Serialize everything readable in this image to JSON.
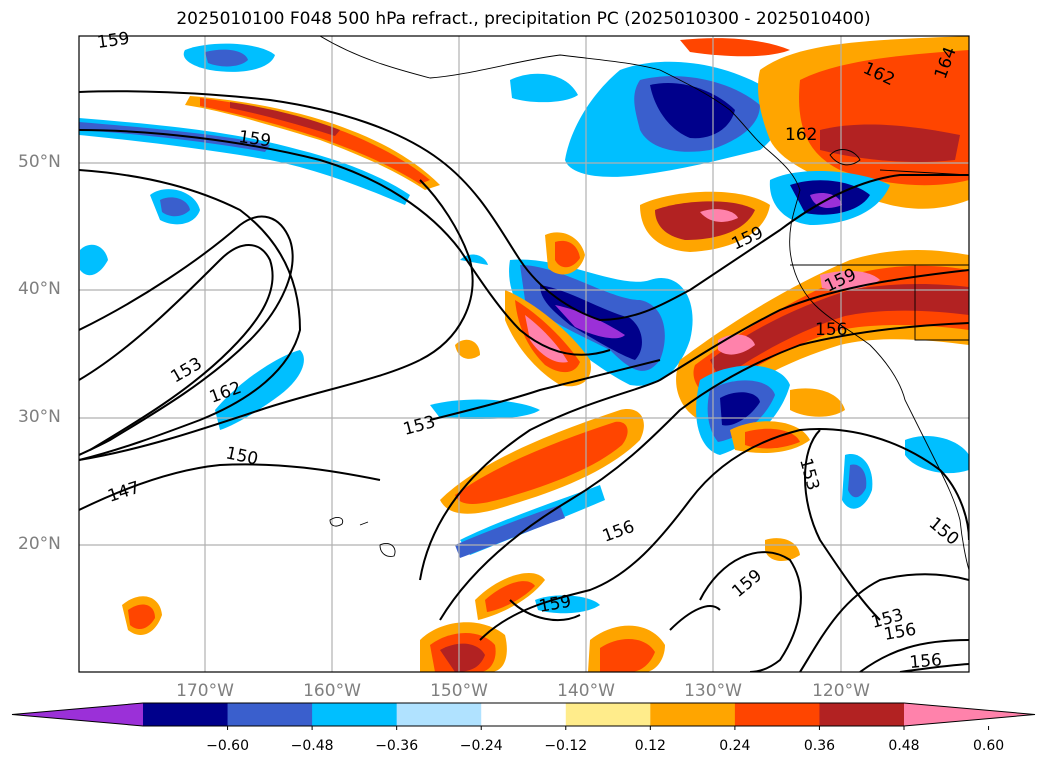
{
  "title": "2025010100 F048 500 hPa refract., precipitation PC (2025010300 - 2025010400)",
  "axes": {
    "lat_labels": [
      "50°N",
      "40°N",
      "30°N",
      "20°N"
    ],
    "lon_labels": [
      "170°W",
      "160°W",
      "150°W",
      "140°W",
      "130°W",
      "120°W"
    ]
  },
  "contour_labels": [
    "159",
    "159",
    "162",
    "162",
    "164",
    "159",
    "159",
    "156",
    "153",
    "162",
    "150",
    "153",
    "147",
    "156",
    "159",
    "159",
    "153",
    "150",
    "153",
    "156",
    "156"
  ],
  "colorbar": {
    "ticks": [
      "−0.60",
      "−0.48",
      "−0.36",
      "−0.24",
      "−0.12",
      "0.12",
      "0.24",
      "0.36",
      "0.48",
      "0.60"
    ],
    "colors": [
      "#9b30d8",
      "#00008b",
      "#3a5fcd",
      "#00bfff",
      "#b0e2ff",
      "#ffffff",
      "#ffec8b",
      "#ffa500",
      "#ff4500",
      "#b22222",
      "#ff82ab"
    ],
    "extend": "both"
  },
  "colors": {
    "grid": "#b0b0b0",
    "axis_label": "#7f7f7f",
    "contour": "#000000"
  }
}
